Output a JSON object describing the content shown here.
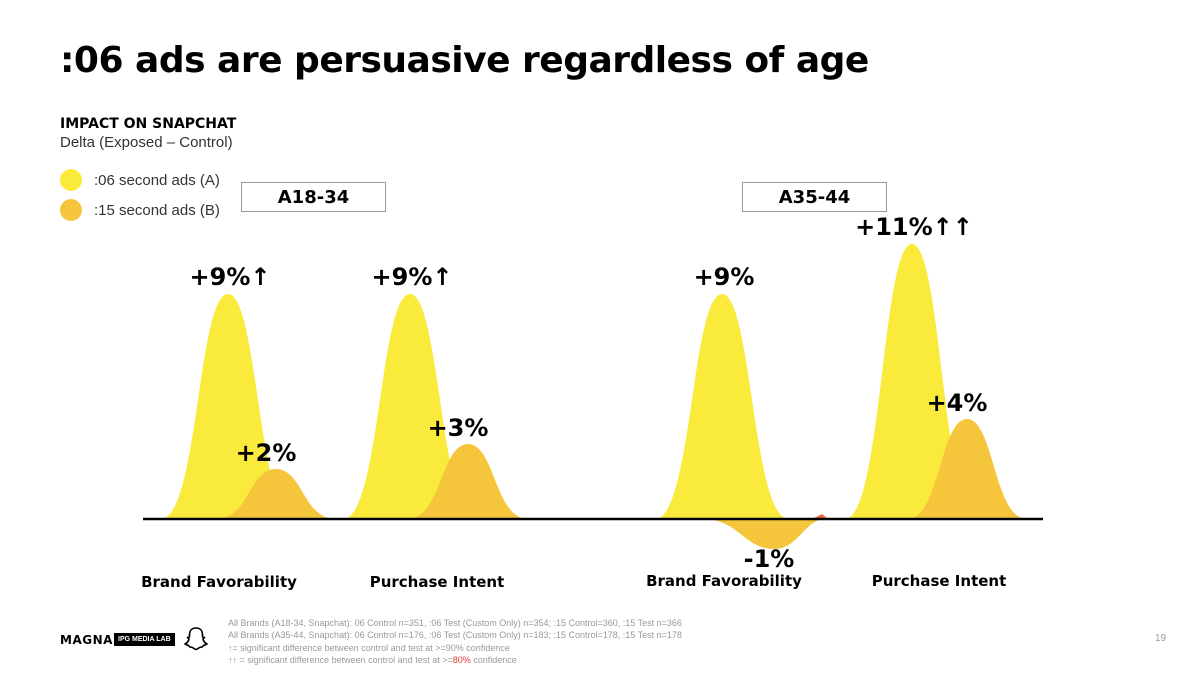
{
  "title": ":06 ads are persuasive regardless of age",
  "subtitle": "IMPACT ON SNAPCHAT",
  "subtitle2": "Delta (Exposed – Control)",
  "legend": [
    {
      "label": ":06 second ads (A)",
      "color": "#FAEA3C"
    },
    {
      "label": ":15 second ads (B)",
      "color": "#F5C63C"
    }
  ],
  "colors": {
    "ads06": "#FAEA3C",
    "ads15": "#F5C63C",
    "negative_tip": "#F06A3C",
    "baseline": "#000000"
  },
  "chart_data": {
    "type": "area",
    "groups": [
      "A18-34",
      "A35-44"
    ],
    "categories": [
      "Brand Favorability",
      "Purchase Intent",
      "Brand Favorability",
      "Purchase Intent"
    ],
    "series": [
      {
        "name": ":06 second ads (A)",
        "values": [
          9,
          9,
          9,
          11
        ],
        "labels": [
          "+9%↑",
          "+9%↑",
          "+9%",
          "+11%↑↑"
        ]
      },
      {
        "name": ":15 second ads (B)",
        "values": [
          2,
          3,
          -1,
          4
        ],
        "labels": [
          "+2%",
          "+3%",
          "-1%",
          "+4%"
        ]
      }
    ]
  },
  "footer": {
    "logo_magna": "MAGNA",
    "logo_ipg": "IPG MEDIA LAB",
    "logo_snapchat": "snapchat-ghost",
    "notes": [
      "All Brands (A18-34, Snapchat): 06 Control n=351, :06 Test (Custom Only) n=354; :15 Control=360, :15 Test n=366",
      "All Brands (A35-44, Snapchat): 06 Control n=176, :06 Test (Custom Only) n=183; :15 Control=178, :15 Test n=178",
      "↑= significant difference between control and test at >=90% confidence"
    ],
    "note4_prefix": "↑↑ = significant difference between control and test at >=",
    "note4_red": "80%",
    "note4_suffix": " confidence",
    "page_number": "19"
  }
}
